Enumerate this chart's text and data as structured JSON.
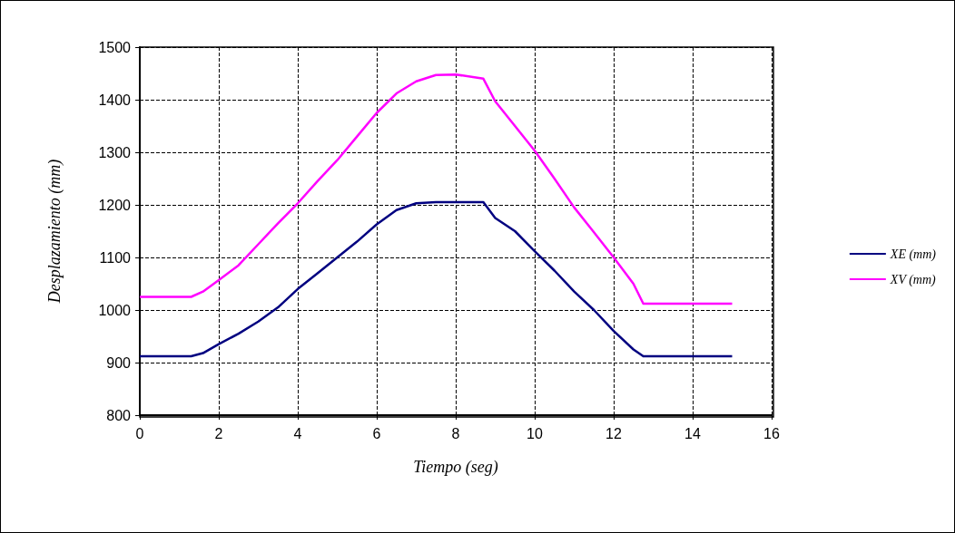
{
  "chart_data": {
    "type": "line",
    "xlabel": "Tiempo (seg)",
    "ylabel": "Desplazamiento (mm)",
    "xlim": [
      0,
      16
    ],
    "xticks": [
      0,
      2,
      4,
      6,
      8,
      10,
      12,
      14,
      16
    ],
    "ylim": [
      800,
      1500
    ],
    "yticks": [
      800,
      900,
      1000,
      1100,
      1200,
      1300,
      1400,
      1500
    ],
    "grid": true,
    "legend": "right",
    "marker": "none",
    "line_style": "solid",
    "x": [
      0,
      1.3,
      1.6,
      2,
      2.5,
      3,
      3.5,
      4,
      4.5,
      5,
      5.5,
      6,
      6.5,
      7,
      7.5,
      8,
      8.7,
      9,
      9.5,
      10,
      10.5,
      11,
      11.5,
      12,
      12.5,
      12.75,
      15
    ],
    "series": [
      {
        "name": "XE (mm)",
        "color": "#000080",
        "values": [
          912,
          912,
          918,
          935,
          955,
          978,
          1005,
          1040,
          1070,
          1100,
          1130,
          1163,
          1190,
          1203,
          1205,
          1205,
          1205,
          1175,
          1150,
          1112,
          1075,
          1035,
          1000,
          960,
          925,
          912,
          912
        ]
      },
      {
        "name": "XV (mm)",
        "color": "#ff00ff",
        "values": [
          1025,
          1025,
          1035,
          1057,
          1085,
          1125,
          1165,
          1203,
          1245,
          1285,
          1330,
          1375,
          1412,
          1435,
          1447,
          1448,
          1440,
          1397,
          1350,
          1303,
          1250,
          1195,
          1148,
          1100,
          1050,
          1012,
          1012
        ]
      }
    ]
  }
}
